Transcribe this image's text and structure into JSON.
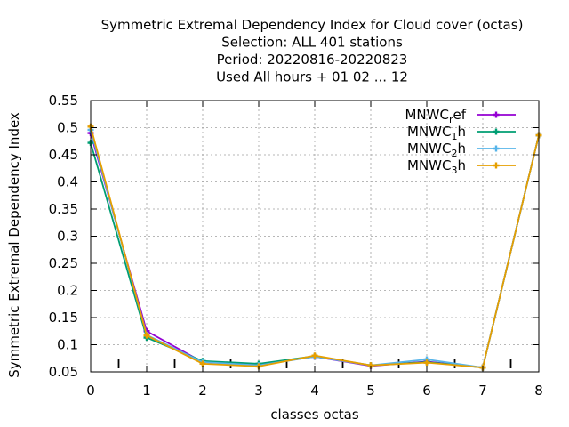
{
  "chart_data": {
    "type": "line",
    "title_lines": [
      "Symmetric Extremal Dependency Index  for Cloud cover (octas)",
      "Selection: ALL    401 stations",
      "Period: 20220816-20220823",
      "Used  All hours + 01 02 ... 12"
    ],
    "xlabel": "classes octas",
    "ylabel": "Symmetric Extremal Dependency Index",
    "x": [
      0,
      1,
      2,
      3,
      4,
      5,
      6,
      7,
      8
    ],
    "xlim": [
      0,
      8
    ],
    "ylim": [
      0.05,
      0.55
    ],
    "xticks": [
      "0",
      "1",
      "2",
      "3",
      "4",
      "5",
      "6",
      "7",
      "8"
    ],
    "yticks": [
      "0.05",
      "0.1",
      "0.15",
      "0.2",
      "0.25",
      "0.3",
      "0.35",
      "0.4",
      "0.45",
      "0.5",
      "0.55"
    ],
    "grid": true,
    "legend_position": "top-right",
    "series": [
      {
        "name": "MNWC_ref",
        "legend_base": "MNWC",
        "legend_sub": "r",
        "legend_tail": "ef",
        "color": "#9400d3",
        "values": [
          0.49,
          0.125,
          0.068,
          0.063,
          0.078,
          0.061,
          0.069,
          0.058,
          0.486
        ]
      },
      {
        "name": "MNWC_1h",
        "legend_base": "MNWC",
        "legend_sub": "1",
        "legend_tail": "h",
        "color": "#009e73",
        "values": [
          0.472,
          0.113,
          0.07,
          0.065,
          0.079,
          0.062,
          0.068,
          0.058,
          0.486
        ]
      },
      {
        "name": "MNWC_2h",
        "legend_base": "MNWC",
        "legend_sub": "2",
        "legend_tail": "h",
        "color": "#56b4e9",
        "values": [
          0.496,
          0.118,
          0.068,
          0.062,
          0.078,
          0.062,
          0.073,
          0.058,
          0.486
        ]
      },
      {
        "name": "MNWC_3h",
        "legend_base": "MNWC",
        "legend_sub": "3",
        "legend_tail": "h",
        "color": "#e69f00",
        "values": [
          0.502,
          0.117,
          0.065,
          0.06,
          0.08,
          0.062,
          0.067,
          0.058,
          0.486
        ]
      }
    ]
  }
}
